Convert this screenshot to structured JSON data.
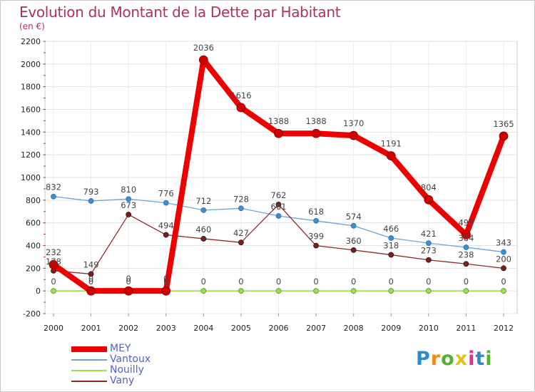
{
  "title": "Evolution du Montant de la Dette par Habitant",
  "subtitle": "(en €)",
  "logo_text": "Proxiti",
  "chart_data": {
    "type": "line",
    "title": "Evolution du Montant de la Dette par Habitant",
    "ylabel": "(en €)",
    "xlabel": "",
    "ylim": [
      -200,
      2200
    ],
    "yticks": [
      "-200",
      "0",
      "200",
      "400",
      "600",
      "800",
      "1000",
      "1200",
      "1400",
      "1600",
      "1800",
      "2000",
      "2200"
    ],
    "ytick_values": [
      -200,
      0,
      200,
      400,
      600,
      800,
      1000,
      1200,
      1400,
      1600,
      1800,
      2000,
      2200
    ],
    "x": [
      "2000",
      "2001",
      "2002",
      "2003",
      "2004",
      "2005",
      "2006",
      "2007",
      "2008",
      "2009",
      "2010",
      "2011",
      "2012"
    ],
    "grid": true,
    "legend_position": "bottom-left",
    "series": [
      {
        "name": "MEY",
        "color": "#ee0000",
        "values": [
          232,
          0,
          0,
          0,
          2036,
          1616,
          1388,
          1388,
          1370,
          1191,
          804,
          495,
          1365
        ]
      },
      {
        "name": "Vantoux",
        "color": "#6aa4d8",
        "values": [
          832,
          793,
          810,
          776,
          712,
          728,
          661,
          618,
          574,
          466,
          421,
          384,
          343
        ]
      },
      {
        "name": "Nouilly",
        "color": "#99e050",
        "values": [
          0,
          0,
          0,
          0,
          0,
          0,
          0,
          0,
          0,
          0,
          0,
          0,
          0
        ]
      },
      {
        "name": "Vany",
        "color": "#8b2a2a",
        "values": [
          178,
          149,
          673,
          494,
          460,
          427,
          762,
          399,
          360,
          318,
          273,
          238,
          200
        ]
      }
    ]
  }
}
